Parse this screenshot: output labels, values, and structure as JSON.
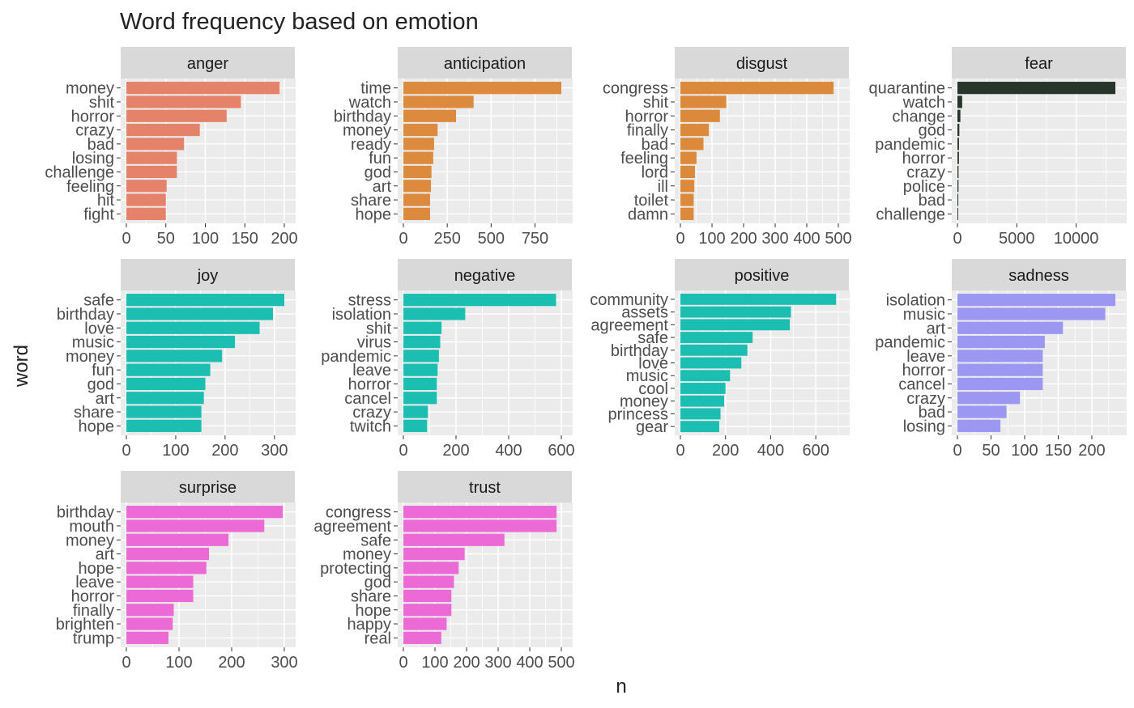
{
  "title": "Word frequency based on emotion",
  "xlabel": "n",
  "ylabel": "word",
  "colors": {
    "anger": "#E4826A",
    "anticipation": "#DC8A3E",
    "disgust": "#DA8A3A",
    "fear": "#27352A",
    "joy": "#1DBEB2",
    "negative": "#1DBEB2",
    "positive": "#1DBEB2",
    "sadness": "#9C98F2",
    "surprise": "#EC6AD6",
    "trust": "#EC6AD6",
    "panel_bg": "#EBEBEB",
    "strip_bg": "#D9D9D9",
    "grid": "#FFFFFF",
    "axis_text": "#4D4D4D"
  },
  "chart_data": [
    {
      "type": "bar",
      "orientation": "horizontal",
      "panel": "anger",
      "categories": [
        "money",
        "shit",
        "horror",
        "crazy",
        "bad",
        "losing",
        "challenge",
        "feeling",
        "hit",
        "fight"
      ],
      "values": [
        194,
        145,
        127,
        93,
        73,
        64,
        64,
        51,
        50,
        50
      ],
      "xlim": [
        0,
        200
      ],
      "xticks": [
        0,
        50,
        100,
        150,
        200
      ]
    },
    {
      "type": "bar",
      "orientation": "horizontal",
      "panel": "anticipation",
      "categories": [
        "time",
        "watch",
        "birthday",
        "money",
        "ready",
        "fun",
        "god",
        "art",
        "share",
        "hope"
      ],
      "values": [
        900,
        400,
        300,
        195,
        175,
        170,
        160,
        157,
        152,
        152
      ],
      "xlim": [
        0,
        900
      ],
      "xticks": [
        0,
        250,
        500,
        750
      ]
    },
    {
      "type": "bar",
      "orientation": "horizontal",
      "panel": "disgust",
      "categories": [
        "congress",
        "shit",
        "horror",
        "finally",
        "bad",
        "feeling",
        "lord",
        "ill",
        "toilet",
        "damn"
      ],
      "values": [
        485,
        145,
        125,
        90,
        73,
        51,
        46,
        44,
        42,
        42
      ],
      "xlim": [
        0,
        500
      ],
      "xticks": [
        0,
        100,
        200,
        300,
        400,
        500
      ]
    },
    {
      "type": "bar",
      "orientation": "horizontal",
      "panel": "fear",
      "categories": [
        "quarantine",
        "watch",
        "change",
        "god",
        "pandemic",
        "horror",
        "crazy",
        "police",
        "bad",
        "challenge"
      ],
      "values": [
        13300,
        400,
        250,
        160,
        130,
        127,
        93,
        90,
        73,
        64
      ],
      "xlim": [
        0,
        13300
      ],
      "xticks": [
        0,
        5000,
        10000
      ]
    },
    {
      "type": "bar",
      "orientation": "horizontal",
      "panel": "joy",
      "categories": [
        "safe",
        "birthday",
        "love",
        "music",
        "money",
        "fun",
        "god",
        "art",
        "share",
        "hope"
      ],
      "values": [
        320,
        297,
        270,
        220,
        194,
        170,
        160,
        157,
        152,
        152
      ],
      "xlim": [
        0,
        320
      ],
      "xticks": [
        0,
        100,
        200,
        300
      ]
    },
    {
      "type": "bar",
      "orientation": "horizontal",
      "panel": "negative",
      "categories": [
        "stress",
        "isolation",
        "shit",
        "virus",
        "pandemic",
        "leave",
        "horror",
        "cancel",
        "crazy",
        "twitch"
      ],
      "values": [
        580,
        235,
        145,
        140,
        135,
        130,
        127,
        127,
        93,
        90
      ],
      "xlim": [
        0,
        600
      ],
      "xticks": [
        0,
        200,
        400,
        600
      ]
    },
    {
      "type": "bar",
      "orientation": "horizontal",
      "panel": "positive",
      "categories": [
        "community",
        "assets",
        "agreement",
        "safe",
        "birthday",
        "love",
        "music",
        "cool",
        "money",
        "princess",
        "gear"
      ],
      "values": [
        690,
        490,
        485,
        320,
        297,
        270,
        220,
        200,
        194,
        178,
        172
      ],
      "xlim": [
        0,
        700
      ],
      "xticks": [
        0,
        200,
        400,
        600
      ]
    },
    {
      "type": "bar",
      "orientation": "horizontal",
      "panel": "sadness",
      "categories": [
        "isolation",
        "music",
        "art",
        "pandemic",
        "leave",
        "horror",
        "cancel",
        "crazy",
        "bad",
        "losing"
      ],
      "values": [
        235,
        220,
        157,
        130,
        127,
        127,
        127,
        93,
        73,
        64
      ],
      "xlim": [
        0,
        235
      ],
      "xticks": [
        0,
        50,
        100,
        150,
        200
      ]
    },
    {
      "type": "bar",
      "orientation": "horizontal",
      "panel": "surprise",
      "categories": [
        "birthday",
        "mouth",
        "money",
        "art",
        "hope",
        "leave",
        "horror",
        "finally",
        "brighten",
        "trump"
      ],
      "values": [
        297,
        262,
        194,
        157,
        152,
        127,
        127,
        90,
        88,
        80
      ],
      "xlim": [
        0,
        300
      ],
      "xticks": [
        0,
        100,
        200,
        300
      ]
    },
    {
      "type": "bar",
      "orientation": "horizontal",
      "panel": "trust",
      "categories": [
        "congress",
        "agreement",
        "safe",
        "money",
        "protecting",
        "god",
        "share",
        "hope",
        "happy",
        "real"
      ],
      "values": [
        485,
        485,
        320,
        194,
        175,
        160,
        152,
        152,
        137,
        120
      ],
      "xlim": [
        0,
        500
      ],
      "xticks": [
        0,
        100,
        200,
        300,
        400,
        500
      ]
    }
  ]
}
